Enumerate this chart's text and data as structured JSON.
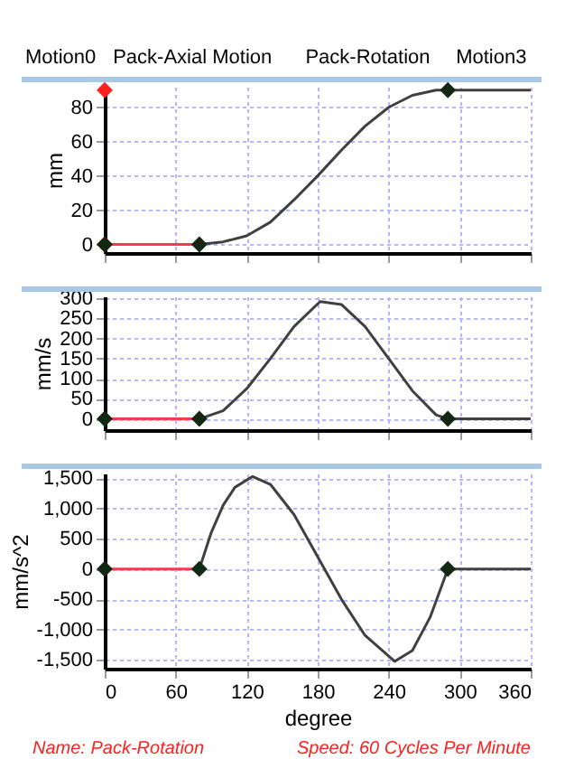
{
  "chart_data": [
    {
      "type": "line",
      "ylabel": "mm",
      "annotations": [
        "Motion0",
        "Pack-Axial Motion",
        "Pack-Rotation",
        "Motion3"
      ],
      "xlim": [
        0,
        360
      ],
      "xticks": [
        0,
        60,
        120,
        180,
        240,
        300,
        360
      ],
      "ylim": [
        -5,
        92
      ],
      "yticks": [
        0,
        20,
        40,
        60,
        80
      ],
      "grid": true,
      "tick_labels": "y",
      "series": [
        {
          "type": "scatter",
          "marker": "diamond",
          "color": "#ff2020",
          "x": [
            0,
            0
          ],
          "values": [
            90,
            0
          ]
        },
        {
          "type": "line",
          "color": "#f03c50",
          "x": [
            0,
            80
          ],
          "values": [
            0,
            0
          ]
        },
        {
          "type": "line",
          "color": "#404040",
          "x": [
            80,
            100,
            120,
            140,
            160,
            180,
            200,
            220,
            240,
            260,
            280,
            290,
            360
          ],
          "values": [
            0,
            1.5,
            5,
            13,
            26,
            40,
            55,
            69,
            80,
            87,
            90,
            90,
            90
          ]
        },
        {
          "type": "scatter",
          "marker": "diamond",
          "color": "#122812",
          "x": [
            0,
            80,
            290
          ],
          "values": [
            0,
            0,
            90
          ]
        }
      ]
    },
    {
      "type": "line",
      "ylabel": "mm/s",
      "xlim": [
        0,
        360
      ],
      "xticks": [
        0,
        60,
        120,
        180,
        240,
        300,
        360
      ],
      "ylim": [
        -28,
        305
      ],
      "yticks": [
        0,
        50,
        100,
        150,
        200,
        250,
        300
      ],
      "grid": true,
      "tick_labels": "y",
      "series": [
        {
          "type": "line",
          "color": "#f03c50",
          "x": [
            0,
            80
          ],
          "values": [
            0,
            0
          ]
        },
        {
          "type": "line",
          "color": "#404040",
          "x": [
            80,
            100,
            120,
            140,
            160,
            182,
            200,
            220,
            240,
            260,
            280,
            290,
            360
          ],
          "values": [
            0,
            20,
            75,
            150,
            230,
            292,
            285,
            230,
            150,
            70,
            10,
            0,
            0
          ]
        },
        {
          "type": "scatter",
          "marker": "diamond",
          "color": "#122812",
          "x": [
            0,
            80,
            290
          ],
          "values": [
            0,
            0,
            0
          ]
        }
      ]
    },
    {
      "type": "line",
      "xlabel": "degree",
      "ylabel": "mm/s^2",
      "annotations": [
        "Name: Pack-Rotation",
        "Speed: 60 Cycles Per Minute"
      ],
      "xlim": [
        0,
        360
      ],
      "xticks": [
        0,
        60,
        120,
        180,
        240,
        300,
        360
      ],
      "ylim": [
        -1650,
        1580
      ],
      "yticks": [
        {
          "value": -1500,
          "label": "-1,500"
        },
        {
          "value": -1000,
          "label": "-1,000"
        },
        -500,
        0,
        500,
        {
          "value": 1000,
          "label": "1,000"
        },
        {
          "value": 1500,
          "label": "1,500"
        }
      ],
      "grid": true,
      "series": [
        {
          "type": "line",
          "color": "#f03c50",
          "x": [
            0,
            80
          ],
          "values": [
            0,
            0
          ]
        },
        {
          "type": "line",
          "color": "#404040",
          "x": [
            80,
            90,
            100,
            110,
            125,
            140,
            160,
            180,
            200,
            220,
            245,
            260,
            275,
            290,
            360
          ],
          "values": [
            0,
            600,
            1050,
            1350,
            1530,
            1400,
            900,
            200,
            -500,
            -1100,
            -1530,
            -1350,
            -800,
            0,
            0
          ]
        },
        {
          "type": "scatter",
          "marker": "diamond",
          "color": "#122812",
          "x": [
            0,
            80,
            290
          ],
          "values": [
            0,
            0,
            0
          ]
        }
      ]
    }
  ]
}
